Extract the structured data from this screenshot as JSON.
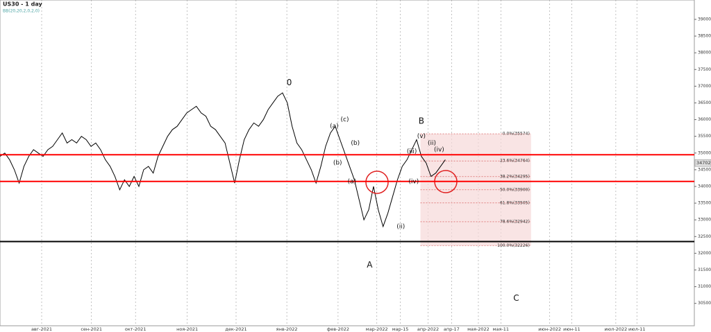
{
  "chart_data": {
    "type": "line",
    "title": "US30 - 1 day",
    "subtitle": "BB(20,20,2,0,2,0)",
    "color": "#000000",
    "values": [
      34900,
      35000,
      34800,
      34500,
      34100,
      34600,
      34900,
      35100,
      35000,
      34900,
      35100,
      35200,
      35400,
      35600,
      35300,
      35400,
      35300,
      35500,
      35400,
      35200,
      35300,
      35100,
      34800,
      34600,
      34300,
      33900,
      34200,
      34000,
      34300,
      34000,
      34500,
      34600,
      34400,
      34900,
      35200,
      35500,
      35700,
      35800,
      36000,
      36200,
      36300,
      36400,
      36200,
      36100,
      35800,
      35700,
      35500,
      35300,
      34700,
      34100,
      34800,
      35400,
      35700,
      35900,
      35800,
      36000,
      36300,
      36500,
      36700,
      36800,
      36500,
      35800,
      35300,
      35100,
      34800,
      34500,
      34100,
      34600,
      35200,
      35600,
      35800,
      35400,
      35000,
      34600,
      34200,
      33600,
      33000,
      33300,
      34000,
      33300,
      32800,
      33200,
      33700,
      34200,
      34600,
      34800,
      35100,
      35400,
      34900,
      34700,
      34300,
      34400,
      34600,
      34800
    ],
    "xlim": [
      0,
      145
    ],
    "ylim": [
      29830,
      39580
    ],
    "yticks": [
      30500,
      31000,
      31500,
      32000,
      32500,
      33000,
      33500,
      34000,
      34500,
      35000,
      35500,
      36000,
      36500,
      37000,
      37500,
      38000,
      38500,
      39000
    ],
    "xticks": [
      {
        "value": 8.7,
        "label": "авг-2021"
      },
      {
        "value": 19.1,
        "label": "сен-2021"
      },
      {
        "value": 28.3,
        "label": "окт-2021"
      },
      {
        "value": 39.1,
        "label": "ноя-2021"
      },
      {
        "value": 49.3,
        "label": "дек-2021"
      },
      {
        "value": 59.9,
        "label": "янв-2022"
      },
      {
        "value": 70.6,
        "label": "фев-2022"
      },
      {
        "value": 78.7,
        "label": "мар-2022"
      },
      {
        "value": 83.6,
        "label": "мар-15"
      },
      {
        "value": 89.4,
        "label": "апр-2022"
      },
      {
        "value": 94.3,
        "label": "апр-17"
      },
      {
        "value": 99.9,
        "label": "мая-2022"
      },
      {
        "value": 104.6,
        "label": "мая-11"
      },
      {
        "value": 114.8,
        "label": "июн-2022"
      },
      {
        "value": 119.4,
        "label": "июн-11"
      },
      {
        "value": 128.6,
        "label": "июл-2022"
      },
      {
        "value": 133,
        "label": "июл-11"
      }
    ],
    "last": 34702,
    "levels": [
      {
        "value": 34950,
        "color": "#ff0000"
      },
      {
        "value": 34150,
        "color": "#ff0000"
      },
      {
        "value": 32350,
        "color": "#000000"
      }
    ],
    "fib": [
      {
        "value": 35574,
        "label": "0.0%(35574)"
      },
      {
        "value": 34764,
        "label": "23.6%(34764)"
      },
      {
        "value": 34295,
        "label": "38.2%(34295)"
      },
      {
        "value": 33900,
        "label": "50.0%(33900)"
      },
      {
        "value": 33505,
        "label": "61.8%(33505)"
      },
      {
        "value": 32942,
        "label": "78.6%(32942)"
      },
      {
        "value": 32226,
        "label": "100.0%(32226)"
      }
    ],
    "fib_x": [
      87.8,
      110.9
    ],
    "annotations": [
      {
        "text": "0",
        "x": 60.4,
        "y": 37100
      },
      {
        "text": "A",
        "x": 77.2,
        "y": 31650
      },
      {
        "text": "B",
        "x": 88,
        "y": 35950
      },
      {
        "text": "C",
        "x": 107.8,
        "y": 30650
      },
      {
        "text": "(a)",
        "x": 69.8,
        "y": 35800
      },
      {
        "text": "(b)",
        "x": 70.5,
        "y": 34700
      },
      {
        "text": "(c)",
        "x": 72,
        "y": 36000
      },
      {
        "text": "(b)",
        "x": 74.2,
        "y": 35300
      },
      {
        "text": "(a)",
        "x": 73.5,
        "y": 34150
      },
      {
        "text": "(iii)",
        "x": 86,
        "y": 35050
      },
      {
        "text": "(iv)",
        "x": 86.4,
        "y": 34150
      },
      {
        "text": "(v)",
        "x": 88,
        "y": 35500
      },
      {
        "text": "(ii)",
        "x": 83.7,
        "y": 32800
      },
      {
        "text": "(iv)",
        "x": 91.7,
        "y": 35100
      },
      {
        "text": "(ii)",
        "x": 90.2,
        "y": 35300
      }
    ]
  }
}
